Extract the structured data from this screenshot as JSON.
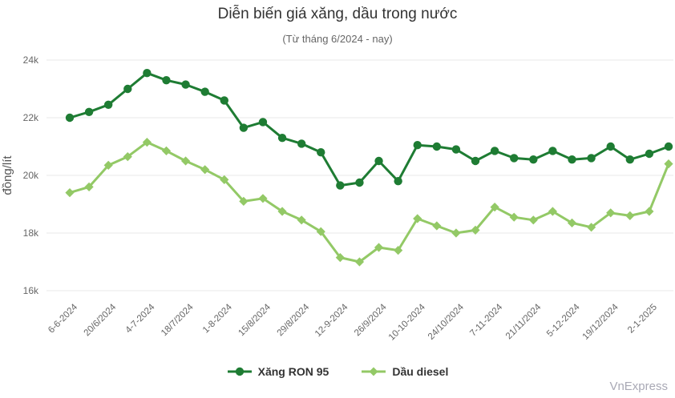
{
  "title": "Diễn biến giá xăng, dầu trong nước",
  "subtitle": "(Từ tháng 6/2024 - nay)",
  "watermark": "VnExpress",
  "colors": {
    "ron95": "#1e7c33",
    "diesel": "#93c966",
    "grid": "#e8e8e8",
    "title": "#333333",
    "subtitle": "#666666",
    "axis_labels": "#666666",
    "legend_text": "#333333",
    "watermark": "#a9a9b5",
    "background": "#ffffff"
  },
  "chart_data": {
    "type": "line",
    "title": "Diễn biến giá xăng, dầu trong nước",
    "subtitle": "(Từ tháng 6/2024 - nay)",
    "xlabel": "",
    "ylabel": "đồng/lít",
    "ylim": [
      16,
      24
    ],
    "yticks": [
      {
        "value": 24,
        "label": "24k"
      },
      {
        "value": 22,
        "label": "22k"
      },
      {
        "value": 20,
        "label": "20k"
      },
      {
        "value": 18,
        "label": "18k"
      },
      {
        "value": 16,
        "label": "16k"
      }
    ],
    "grid": "horizontal",
    "legend_position": "bottom",
    "x_label_rotation": -45,
    "tick_every": 2,
    "x_tick_labels": [
      "6-6-2024",
      "20/6/2024",
      "4-7-2024",
      "18/7/2024",
      "1-8-2024",
      "15/8/2024",
      "29/8/2024",
      "12-9-2024",
      "26/9/2024",
      "10-10-2024",
      "24/10/2024",
      "7-11-2024",
      "21/11/2024",
      "5-12-2024",
      "19/12/2024",
      "2-1-2025"
    ],
    "values_unit": "nghìn đồng/lít",
    "series": [
      {
        "name": "Xăng RON 95",
        "marker": "circle",
        "color": "#1e7c33",
        "values": [
          22.0,
          22.2,
          22.45,
          23.0,
          23.55,
          23.3,
          23.15,
          22.9,
          22.6,
          21.65,
          21.85,
          21.3,
          21.1,
          20.8,
          19.65,
          19.75,
          20.5,
          19.8,
          21.05,
          21.0,
          20.9,
          20.5,
          20.85,
          20.6,
          20.55,
          20.85,
          20.55,
          20.6,
          21.0,
          20.55,
          20.75,
          21.0
        ]
      },
      {
        "name": "Dầu diesel",
        "marker": "diamond",
        "color": "#93c966",
        "values": [
          19.4,
          19.6,
          20.35,
          20.65,
          21.15,
          20.85,
          20.5,
          20.2,
          19.85,
          19.1,
          19.2,
          18.75,
          18.45,
          18.05,
          17.15,
          17.0,
          17.5,
          17.4,
          18.5,
          18.25,
          18.0,
          18.1,
          18.9,
          18.55,
          18.45,
          18.75,
          18.35,
          18.2,
          18.7,
          18.6,
          18.75,
          20.4
        ]
      }
    ]
  }
}
